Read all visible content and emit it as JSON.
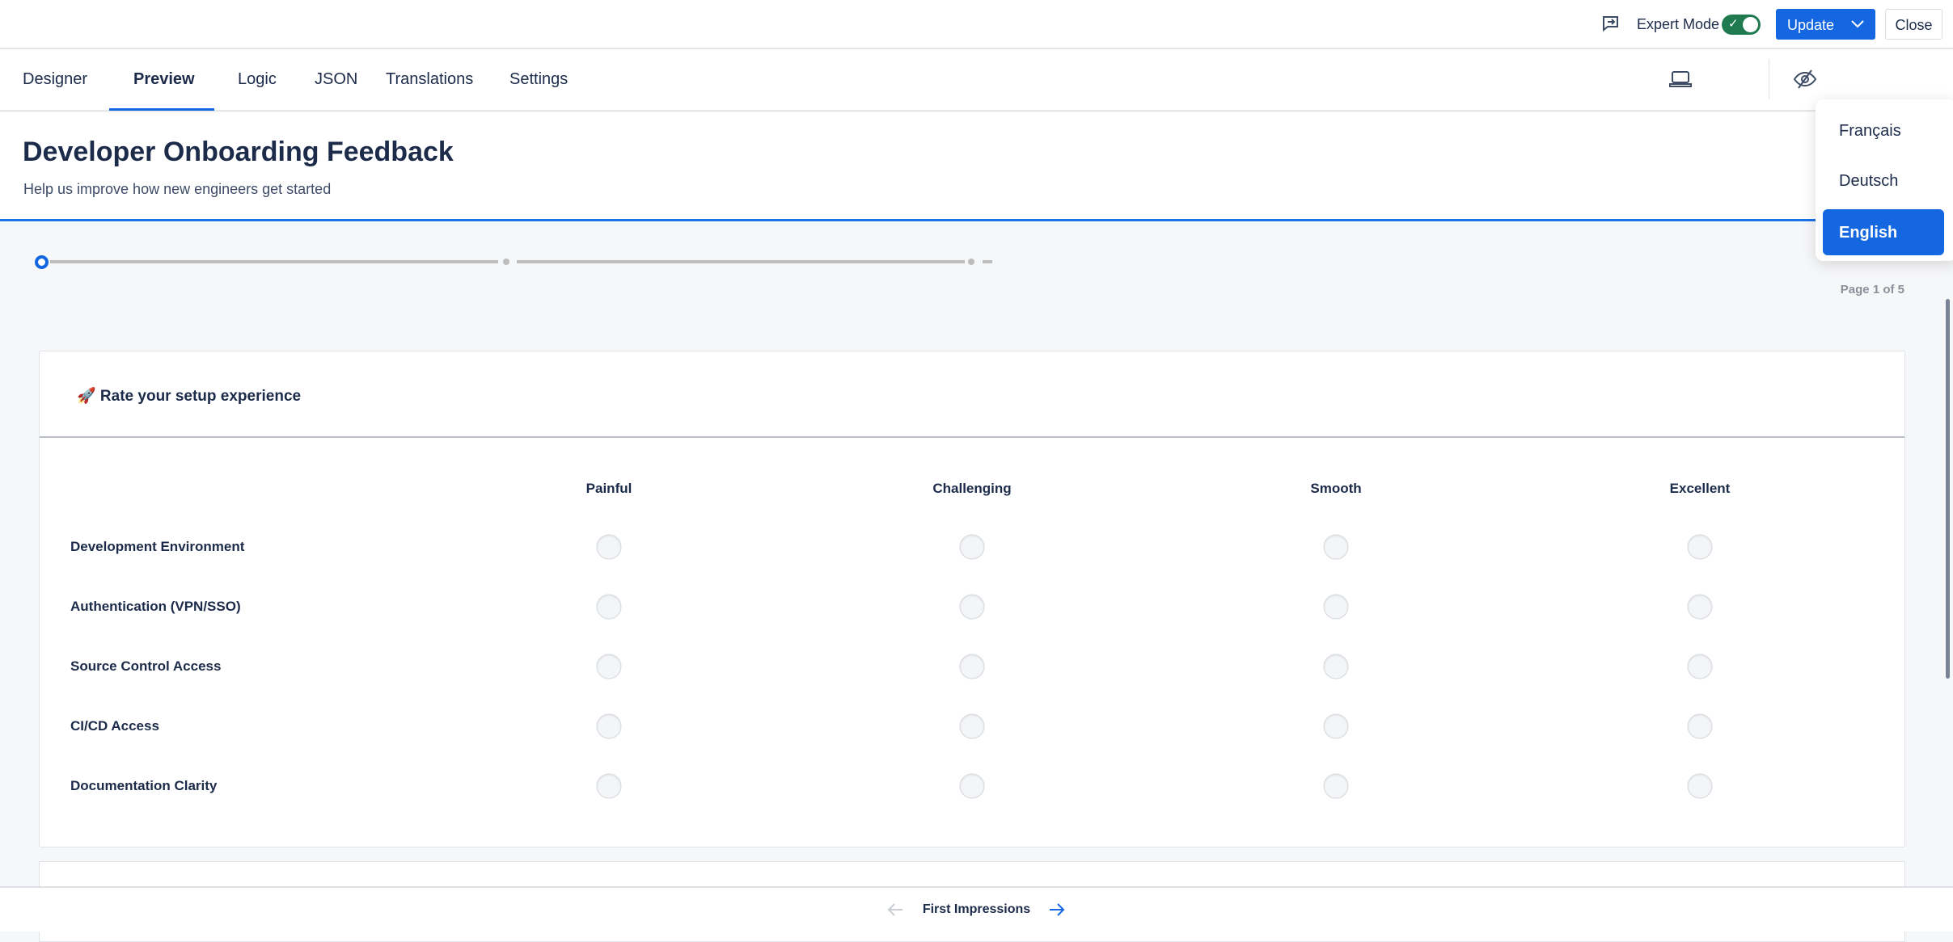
{
  "topbar": {
    "expert_mode_label": "Expert Mode",
    "expert_mode_on": true,
    "update_label": "Update",
    "close_label": "Close"
  },
  "tabs": [
    {
      "label": "Designer"
    },
    {
      "label": "Preview",
      "active": true
    },
    {
      "label": "Logic"
    },
    {
      "label": "JSON"
    },
    {
      "label": "Translations"
    },
    {
      "label": "Settings"
    }
  ],
  "survey": {
    "title": "Developer Onboarding Feedback",
    "subtitle": "Help us improve how new engineers get started",
    "page_info": "Page 1 of 5"
  },
  "question": {
    "title": "🚀 Rate your setup experience",
    "columns": [
      "Painful",
      "Challenging",
      "Smooth",
      "Excellent"
    ],
    "rows": [
      "Development Environment",
      "Authentication (VPN/SSO)",
      "Source Control Access",
      "CI/CD Access",
      "Documentation Clarity"
    ]
  },
  "navigation": {
    "page_title": "First Impressions"
  },
  "language_menu": {
    "items": [
      "Français",
      "Deutsch",
      "English"
    ],
    "selected": "English"
  },
  "colors": {
    "accent": "#1467e0",
    "toggle_on": "#1f7a4f"
  }
}
